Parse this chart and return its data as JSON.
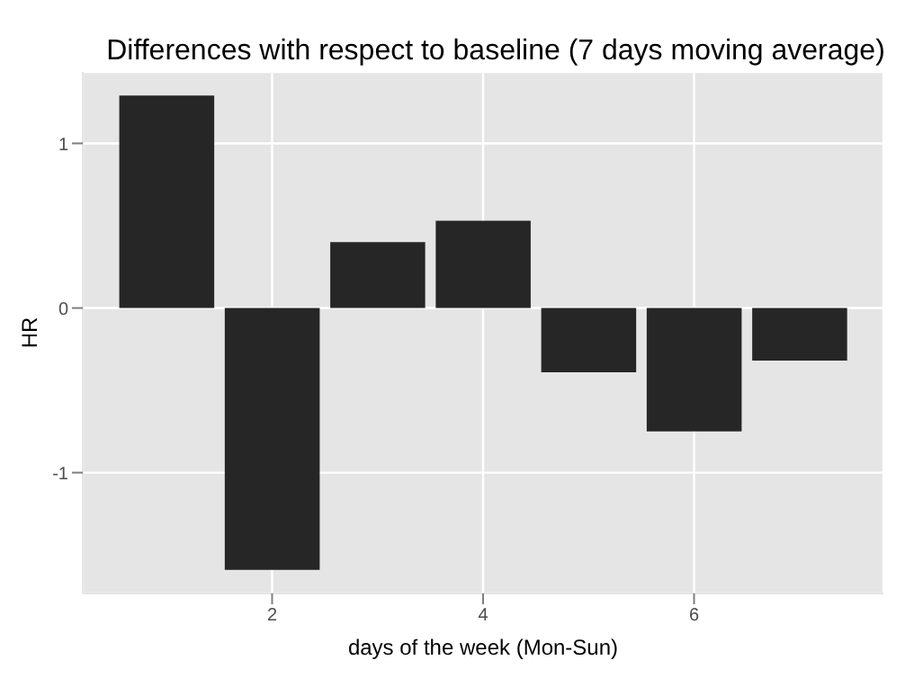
{
  "chart_data": {
    "type": "bar",
    "title": "Differences with respect to baseline (7 days moving average)",
    "xlabel": "days of the week (Mon-Sun)",
    "ylabel": "HR",
    "x": [
      1,
      2,
      3,
      4,
      5,
      6,
      7
    ],
    "values": [
      1.29,
      -1.59,
      0.4,
      0.53,
      -0.39,
      -0.75,
      -0.32
    ],
    "color": "#262626",
    "xlim": [
      0.205,
      7.795
    ],
    "xticks": [
      2,
      4,
      6
    ],
    "ylim": [
      -1.734,
      1.434
    ],
    "yticks": [
      -1,
      0,
      1
    ],
    "grid": true
  }
}
